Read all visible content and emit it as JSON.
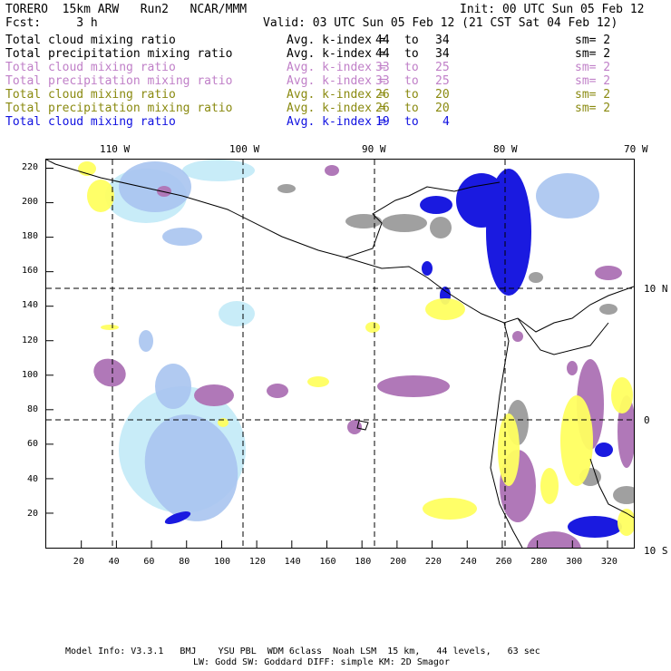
{
  "header": {
    "model": "TORERO  15km ARW   Run2   NCAR/MMM",
    "init": "Init: 00 UTC Sun 05 Feb 12",
    "fcst": "Fcst:     3 h",
    "valid": "Valid: 03 UTC Sun 05 Feb 12 (21 CST Sat 04 Feb 12)"
  },
  "legend": [
    {
      "field": "Total cloud mixing ratio",
      "kindex": "Avg. k-index =",
      "from": "44",
      "to_word": "to",
      "to": "34",
      "sm": "sm= 2",
      "color": "#000000"
    },
    {
      "field": "Total precipitation mixing ratio",
      "kindex": "Avg. k-index =",
      "from": "44",
      "to_word": "to",
      "to": "34",
      "sm": "sm= 2",
      "color": "#000000"
    },
    {
      "field": "Total cloud mixing ratio",
      "kindex": "Avg. k-index =",
      "from": "33",
      "to_word": "to",
      "to": "25",
      "sm": "sm= 2",
      "color": "#c080c8"
    },
    {
      "field": "Total precipitation mixing ratio",
      "kindex": "Avg. k-index =",
      "from": "33",
      "to_word": "to",
      "to": "25",
      "sm": "sm= 2",
      "color": "#c080c8"
    },
    {
      "field": "Total cloud mixing ratio",
      "kindex": "Avg. k-index =",
      "from": "26",
      "to_word": "to",
      "to": "20",
      "sm": "sm= 2",
      "color": "#8a8a10"
    },
    {
      "field": "Total precipitation mixing ratio",
      "kindex": "Avg. k-index =",
      "from": "26",
      "to_word": "to",
      "to": "20",
      "sm": "sm= 2",
      "color": "#8a8a10"
    },
    {
      "field": "Total cloud mixing ratio",
      "kindex": "Avg. k-index =",
      "from": "19",
      "to_word": "to",
      "to": "4",
      "sm": "",
      "color": "#1010e0"
    }
  ],
  "map": {
    "lon_labels": [
      "110 W",
      "100 W",
      "90 W",
      "80 W",
      "70 W"
    ],
    "lat_labels": [
      "10 N",
      "0",
      "10 S"
    ],
    "x_ticks": [
      "20",
      "40",
      "60",
      "80",
      "100",
      "120",
      "140",
      "160",
      "180",
      "200",
      "220",
      "240",
      "260",
      "280",
      "300",
      "320"
    ],
    "y_ticks": [
      "220",
      "200",
      "180",
      "160",
      "140",
      "120",
      "100",
      "80",
      "60",
      "40",
      "20"
    ],
    "x_range": [
      0,
      335
    ],
    "y_range": [
      0,
      225
    ],
    "colors": {
      "gray": "#a0a0a0",
      "purple": "#b078b8",
      "yellow": "#ffff60",
      "blue": "#1a1ae0",
      "lightblue": "#a8c4f0",
      "palecyan": "#c8ecf8"
    }
  },
  "footer": {
    "line1": "Model Info: V3.3.1   BMJ    YSU PBL  WDM 6class  Noah LSM  15 km,   44 levels,   63 sec",
    "line2": "LW: Godd SW: Goddard DIFF: simple KM: 2D Smagor"
  }
}
